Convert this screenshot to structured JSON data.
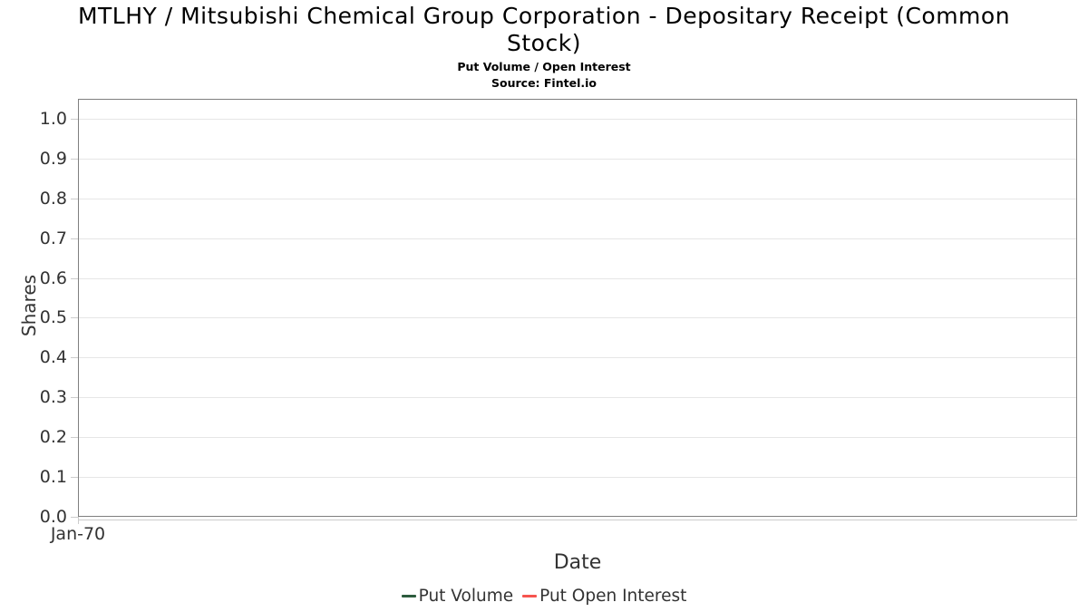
{
  "chart_data": {
    "type": "line",
    "title": "MTLHY / Mitsubishi Chemical Group Corporation - Depositary Receipt (Common Stock)",
    "subtitle": "Put Volume / Open Interest",
    "source": "Source: Fintel.io",
    "xlabel": "Date",
    "ylabel": "Shares",
    "x_tick_labels": [
      "Jan-70"
    ],
    "y_tick_labels": [
      "0.0",
      "0.1",
      "0.2",
      "0.3",
      "0.4",
      "0.5",
      "0.6",
      "0.7",
      "0.8",
      "0.9",
      "1.0"
    ],
    "ylim": [
      0,
      1.05
    ],
    "grid": "horizontal-only",
    "legend_position": "bottom-center",
    "series": [
      {
        "name": "Put Volume",
        "color": "#2d5c3e",
        "x": [],
        "y": []
      },
      {
        "name": "Put Open Interest",
        "color": "#f6544f",
        "x": [],
        "y": []
      }
    ]
  },
  "colors": {
    "plot_border": "#7f7f7f",
    "gridline": "#e6e6e6",
    "tick": "#cccccc",
    "axis_text": "#333333",
    "title_text": "#000000",
    "background": "#ffffff"
  }
}
